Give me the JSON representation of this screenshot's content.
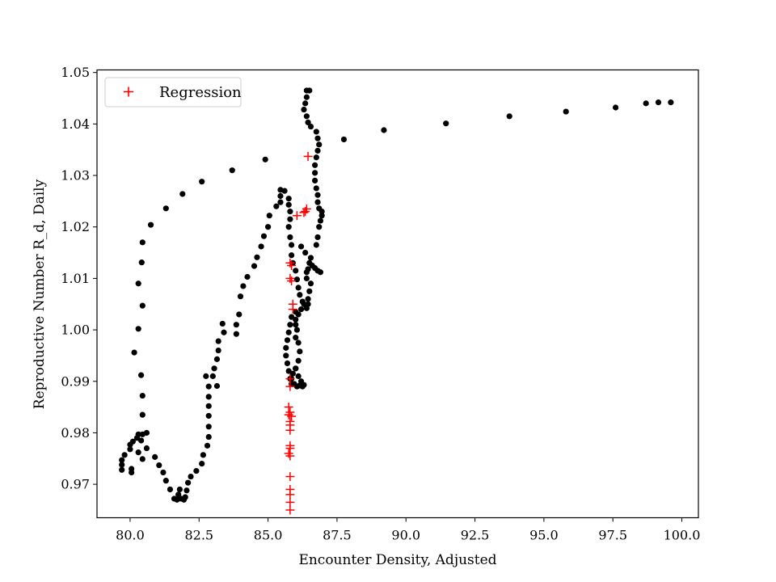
{
  "chart_data": {
    "type": "scatter",
    "title": "",
    "xlabel": "Encounter Density, Adjusted",
    "ylabel": "Reproductive Number R_d, Daily",
    "xlim": [
      78.8,
      100.6
    ],
    "ylim": [
      0.9635,
      1.0505
    ],
    "x_ticks": [
      80.0,
      82.5,
      85.0,
      87.5,
      90.0,
      92.5,
      95.0,
      97.5,
      100.0
    ],
    "x_tick_labels": [
      "80.0",
      "82.5",
      "85.0",
      "87.5",
      "90.0",
      "92.5",
      "95.0",
      "97.5",
      "100.0"
    ],
    "y_ticks": [
      0.97,
      0.98,
      0.99,
      1.0,
      1.01,
      1.02,
      1.03,
      1.04,
      1.05
    ],
    "y_tick_labels": [
      "0.97",
      "0.98",
      "0.99",
      "1.00",
      "1.01",
      "1.02",
      "1.03",
      "1.04",
      "1.05"
    ],
    "grid": false,
    "legend": {
      "position": "top-left",
      "entries": [
        "Regression"
      ]
    },
    "colors": {
      "observed": "#000000",
      "regression": "#ff0000"
    },
    "series": [
      {
        "marker": "dot",
        "color": "#000000",
        "points": [
          [
            99.6,
            1.0442
          ],
          [
            99.15,
            1.0442
          ],
          [
            98.7,
            1.044
          ],
          [
            97.6,
            1.0432
          ],
          [
            95.8,
            1.0424
          ],
          [
            93.75,
            1.0415
          ],
          [
            91.45,
            1.0401
          ],
          [
            89.2,
            1.0388
          ],
          [
            87.75,
            1.037
          ],
          [
            84.9,
            1.0331
          ],
          [
            83.7,
            1.031
          ],
          [
            82.6,
            1.0288
          ],
          [
            81.9,
            1.0264
          ],
          [
            81.3,
            1.0236
          ],
          [
            80.75,
            1.0204
          ],
          [
            80.45,
            1.017
          ],
          [
            80.42,
            1.0131
          ],
          [
            80.3,
            1.009
          ],
          [
            80.45,
            1.0047
          ],
          [
            80.3,
            1.0002
          ],
          [
            80.15,
            0.9956
          ],
          [
            80.4,
            0.9912
          ],
          [
            80.45,
            0.9872
          ],
          [
            80.45,
            0.9835
          ],
          [
            80.45,
            0.9797
          ],
          [
            80.6,
            0.98
          ],
          [
            80.3,
            0.9797
          ],
          [
            80.25,
            0.979
          ],
          [
            80.1,
            0.9783
          ],
          [
            80.4,
            0.9785
          ],
          [
            80.0,
            0.9777
          ],
          [
            80.0,
            0.9768
          ],
          [
            80.3,
            0.9762
          ],
          [
            79.8,
            0.9757
          ],
          [
            79.7,
            0.9747
          ],
          [
            79.7,
            0.9738
          ],
          [
            79.7,
            0.9728
          ],
          [
            80.05,
            0.973
          ],
          [
            80.05,
            0.9723
          ],
          [
            80.45,
            0.9749
          ],
          [
            80.6,
            0.977
          ],
          [
            80.9,
            0.9753
          ],
          [
            81.05,
            0.9737
          ],
          [
            81.2,
            0.9723
          ],
          [
            81.3,
            0.9707
          ],
          [
            81.45,
            0.969
          ],
          [
            81.6,
            0.9672
          ],
          [
            81.7,
            0.967
          ],
          [
            81.75,
            0.968
          ],
          [
            81.8,
            0.969
          ],
          [
            81.85,
            0.9672
          ],
          [
            81.95,
            0.967
          ],
          [
            82.0,
            0.9675
          ],
          [
            82.05,
            0.9688
          ],
          [
            82.1,
            0.9703
          ],
          [
            82.2,
            0.9715
          ],
          [
            82.4,
            0.9726
          ],
          [
            82.6,
            0.974
          ],
          [
            82.65,
            0.9757
          ],
          [
            82.8,
            0.9775
          ],
          [
            82.85,
            0.9792
          ],
          [
            82.85,
            0.9812
          ],
          [
            82.85,
            0.9833
          ],
          [
            82.85,
            0.9852
          ],
          [
            82.85,
            0.987
          ],
          [
            82.85,
            0.989
          ],
          [
            82.75,
            0.991
          ],
          [
            83.0,
            0.991
          ],
          [
            83.15,
            0.9891
          ],
          [
            83.05,
            0.9925
          ],
          [
            83.15,
            0.9943
          ],
          [
            83.2,
            0.996
          ],
          [
            83.2,
            0.9978
          ],
          [
            83.4,
            0.9995
          ],
          [
            83.35,
            1.0012
          ],
          [
            83.85,
            0.9992
          ],
          [
            83.85,
            1.001
          ],
          [
            83.95,
            1.003
          ],
          [
            84.0,
            1.0065
          ],
          [
            84.1,
            1.0085
          ],
          [
            84.25,
            1.0103
          ],
          [
            84.5,
            1.0124
          ],
          [
            84.6,
            1.0141
          ],
          [
            84.75,
            1.0162
          ],
          [
            84.85,
            1.0182
          ],
          [
            85.0,
            1.02
          ],
          [
            85.05,
            1.0222
          ],
          [
            85.3,
            1.024
          ],
          [
            85.45,
            1.0248
          ],
          [
            85.45,
            1.026
          ],
          [
            85.45,
            1.0272
          ],
          [
            85.6,
            1.027
          ],
          [
            85.75,
            1.0255
          ],
          [
            85.75,
            1.0243
          ],
          [
            85.8,
            1.023
          ],
          [
            85.8,
            1.0215
          ],
          [
            85.75,
            1.02
          ],
          [
            85.8,
            1.018
          ],
          [
            85.85,
            1.0165
          ],
          [
            85.85,
            1.0145
          ],
          [
            85.9,
            1.013
          ],
          [
            86.0,
            1.0115
          ],
          [
            86.05,
            1.0098
          ],
          [
            86.1,
            1.0082
          ],
          [
            86.15,
            1.0068
          ],
          [
            86.25,
            1.0055
          ],
          [
            86.5,
            1.0465
          ],
          [
            86.4,
            1.0465
          ],
          [
            86.4,
            1.0452
          ],
          [
            86.35,
            1.044
          ],
          [
            86.3,
            1.0428
          ],
          [
            86.4,
            1.0415
          ],
          [
            86.45,
            1.0403
          ],
          [
            86.55,
            1.0395
          ],
          [
            86.75,
            1.0385
          ],
          [
            86.8,
            1.0372
          ],
          [
            86.85,
            1.036
          ],
          [
            86.8,
            1.0348
          ],
          [
            86.75,
            1.0335
          ],
          [
            86.7,
            1.032
          ],
          [
            86.7,
            1.0305
          ],
          [
            86.7,
            1.029
          ],
          [
            86.75,
            1.0275
          ],
          [
            86.8,
            1.0262
          ],
          [
            86.8,
            1.0248
          ],
          [
            86.85,
            1.0236
          ],
          [
            86.95,
            1.023
          ],
          [
            86.95,
            1.0222
          ],
          [
            86.9,
            1.0212
          ],
          [
            86.85,
            1.02
          ],
          [
            86.8,
            1.018
          ],
          [
            86.75,
            1.0165
          ],
          [
            86.9,
            1.0112
          ],
          [
            86.8,
            1.0115
          ],
          [
            86.7,
            1.012
          ],
          [
            86.6,
            1.0125
          ],
          [
            86.55,
            1.014
          ],
          [
            86.5,
            1.013
          ],
          [
            86.45,
            1.0118
          ],
          [
            86.4,
            1.0112
          ],
          [
            86.4,
            1.01
          ],
          [
            86.55,
            1.009
          ],
          [
            86.5,
            1.0075
          ],
          [
            86.45,
            1.006
          ],
          [
            86.45,
            1.005
          ],
          [
            86.4,
            1.0042
          ],
          [
            86.3,
            1.005
          ],
          [
            86.35,
            1.015
          ],
          [
            86.2,
            1.0162
          ],
          [
            86.2,
            1.004
          ],
          [
            86.1,
            1.003
          ],
          [
            86.0,
            1.0035
          ],
          [
            86.0,
            1.002
          ],
          [
            86.0,
            1.001
          ],
          [
            86.05,
            1.0
          ],
          [
            86.0,
            0.9985
          ],
          [
            86.1,
            0.9975
          ],
          [
            86.15,
            0.9958
          ],
          [
            86.1,
            0.994
          ],
          [
            86.0,
            0.9925
          ],
          [
            85.9,
            0.9915
          ],
          [
            85.85,
            0.9905
          ],
          [
            85.95,
            0.9895
          ],
          [
            86.05,
            0.989
          ],
          [
            86.15,
            0.9892
          ],
          [
            86.25,
            0.989
          ],
          [
            86.3,
            0.9893
          ],
          [
            86.2,
            0.99
          ],
          [
            86.1,
            0.991
          ],
          [
            86.0,
            0.9925
          ],
          [
            85.7,
            0.998
          ],
          [
            85.65,
            0.9965
          ],
          [
            85.65,
            0.995
          ],
          [
            85.7,
            0.9935
          ],
          [
            85.75,
            0.992
          ],
          [
            85.8,
            0.9905
          ],
          [
            85.85,
            0.9895
          ],
          [
            85.75,
            0.9995
          ],
          [
            85.8,
            1.001
          ],
          [
            85.85,
            1.0025
          ]
        ]
      },
      {
        "name": "Regression",
        "marker": "plus",
        "color": "#ff0000",
        "points": [
          [
            86.45,
            1.0337
          ],
          [
            86.05,
            1.0222
          ],
          [
            86.3,
            1.0228
          ],
          [
            86.4,
            1.0235
          ],
          [
            86.35,
            1.023
          ],
          [
            85.8,
            1.013
          ],
          [
            85.85,
            1.0125
          ],
          [
            85.8,
            1.01
          ],
          [
            85.85,
            1.0095
          ],
          [
            85.9,
            1.005
          ],
          [
            85.9,
            1.004
          ],
          [
            85.8,
            0.9905
          ],
          [
            85.8,
            0.989
          ],
          [
            85.75,
            0.985
          ],
          [
            85.8,
            0.984
          ],
          [
            85.75,
            0.9835
          ],
          [
            85.85,
            0.9832
          ],
          [
            85.8,
            0.9822
          ],
          [
            85.8,
            0.9815
          ],
          [
            85.8,
            0.9805
          ],
          [
            85.8,
            0.9775
          ],
          [
            85.8,
            0.977
          ],
          [
            85.75,
            0.976
          ],
          [
            85.8,
            0.9755
          ],
          [
            85.8,
            0.9715
          ],
          [
            85.8,
            0.969
          ],
          [
            85.8,
            0.968
          ],
          [
            85.8,
            0.9665
          ],
          [
            85.8,
            0.965
          ]
        ]
      }
    ]
  }
}
